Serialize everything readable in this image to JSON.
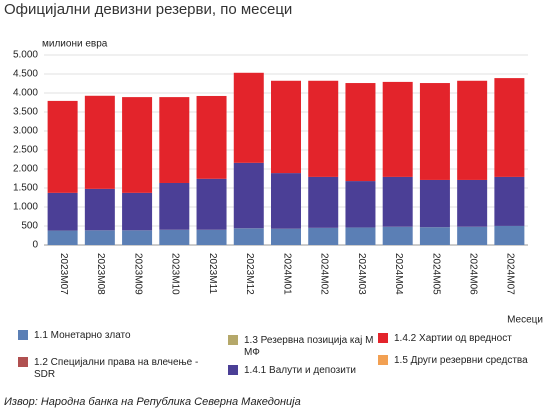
{
  "chart_data": {
    "type": "stacked_bar",
    "title": "Официјални девизни резерви, по месеци",
    "y_label": "милиони евра",
    "x_label": "Месеци",
    "source": "Извор: Народна банка на Република Северна Македонија",
    "categories": [
      "2023M07",
      "2023M08",
      "2023M09",
      "2023M10",
      "2023M11",
      "2023M12",
      "2024M01",
      "2024M02",
      "2024M03",
      "2024M04",
      "2024M05",
      "2024M06",
      "2024M07"
    ],
    "series": [
      {
        "name": "1.1 Монетарно злато",
        "color": "#5b7fb5",
        "values": [
          380,
          385,
          385,
          400,
          400,
          440,
          430,
          450,
          460,
          480,
          470,
          480,
          500
        ]
      },
      {
        "name": "1.2 Специјални права на влечење - SDR",
        "color": "#b05050",
        "values": [
          2,
          2,
          2,
          2,
          2,
          2,
          2,
          2,
          2,
          2,
          2,
          2,
          2
        ]
      },
      {
        "name": "1.3 Резервна позиција кај ММФ",
        "color": "#b5a86a",
        "values": [
          0,
          0,
          0,
          0,
          0,
          0,
          0,
          0,
          0,
          0,
          0,
          0,
          0
        ]
      },
      {
        "name": "1.4.1 Валути и депозити",
        "color": "#4b3f96",
        "values": [
          990,
          1090,
          985,
          1230,
          1340,
          1720,
          1460,
          1340,
          1220,
          1310,
          1240,
          1230,
          1290
        ]
      },
      {
        "name": "1.4.2 Хартии од вредност",
        "color": "#e3242b",
        "values": [
          2420,
          2450,
          2520,
          2260,
          2180,
          2370,
          2430,
          2530,
          2580,
          2500,
          2550,
          2610,
          2600
        ]
      },
      {
        "name": "1.5 Други резервни средства",
        "color": "#f2a052",
        "values": [
          0,
          0,
          0,
          0,
          0,
          0,
          0,
          0,
          0,
          0,
          0,
          0,
          0
        ]
      }
    ],
    "ylim": [
      0,
      5000
    ],
    "yticks": [
      0,
      500,
      {
        "value": 1000,
        "label": "1.000"
      },
      {
        "value": 1500,
        "label": "1.500"
      },
      {
        "value": 2000,
        "label": "2.000"
      },
      {
        "value": 2500,
        "label": "2.500"
      },
      {
        "value": 3000,
        "label": "3.000"
      },
      {
        "value": 3500,
        "label": "3.500"
      },
      {
        "value": 4000,
        "label": "4.000"
      },
      {
        "value": 4500,
        "label": "4.500"
      },
      {
        "value": 5000,
        "label": "5.000"
      }
    ],
    "grid": true
  }
}
